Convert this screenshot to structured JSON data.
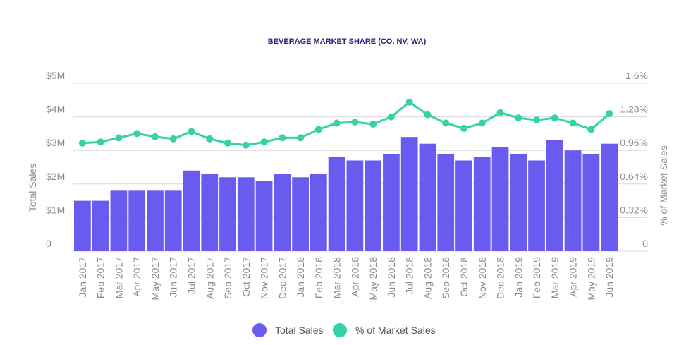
{
  "chart_data": {
    "type": "bar",
    "title": "BEVERAGE MARKET SHARE (CO, NV, WA)",
    "ylabel": "Total Sales",
    "y2label": "% of Market Sales",
    "ylim": [
      0,
      5000000
    ],
    "y2lim": [
      0,
      1.6
    ],
    "y_ticks": [
      "0",
      "$1M",
      "$2M",
      "$3M",
      "$4M",
      "$5M"
    ],
    "y2_ticks": [
      "0",
      "0.32%",
      "0.64%",
      "0.96%",
      "1.28%",
      "1.6%"
    ],
    "grid": true,
    "colors": {
      "bar": "#6a5bf0",
      "line": "#36d1a8",
      "title": "#23237a",
      "grid": "#d9d9d9",
      "tick": "#8a8a8a"
    },
    "categories": [
      "Jan 2017",
      "Feb 2017",
      "Mar 2017",
      "Apr 2017",
      "May 2017",
      "Jun 2017",
      "Jul 2017",
      "Aug 2017",
      "Sep 2017",
      "Oct 2017",
      "Nov 2017",
      "Dec 2017",
      "Jan 2018",
      "Feb 2018",
      "Mar 2018",
      "Apr 2018",
      "May 2018",
      "Jun 2018",
      "Jul 2018",
      "Aug 2018",
      "Sep 2018",
      "Oct 2018",
      "Nov 2018",
      "Dec 2018",
      "Jan 2019",
      "Feb 2019",
      "Mar 2019",
      "Apr 2019",
      "May 2019",
      "Jun 2019"
    ],
    "series": [
      {
        "name": "Total Sales",
        "type": "bar",
        "axis": "left",
        "values": [
          1500000,
          1500000,
          1800000,
          1800000,
          1800000,
          1800000,
          2400000,
          2300000,
          2200000,
          2200000,
          2100000,
          2300000,
          2200000,
          2300000,
          2800000,
          2700000,
          2700000,
          2900000,
          3400000,
          3200000,
          2900000,
          2700000,
          2800000,
          3100000,
          2900000,
          2700000,
          3300000,
          3000000,
          2900000,
          3200000
        ]
      },
      {
        "name": "% of Market Sales",
        "type": "line",
        "axis": "right",
        "values": [
          1.03,
          1.04,
          1.08,
          1.12,
          1.09,
          1.07,
          1.14,
          1.07,
          1.03,
          1.01,
          1.04,
          1.08,
          1.08,
          1.16,
          1.22,
          1.23,
          1.21,
          1.28,
          1.42,
          1.3,
          1.22,
          1.17,
          1.22,
          1.32,
          1.27,
          1.25,
          1.27,
          1.22,
          1.16,
          1.31
        ]
      }
    ],
    "legend": {
      "position": "bottom",
      "items": [
        "Total Sales",
        "% of Market Sales"
      ]
    }
  }
}
